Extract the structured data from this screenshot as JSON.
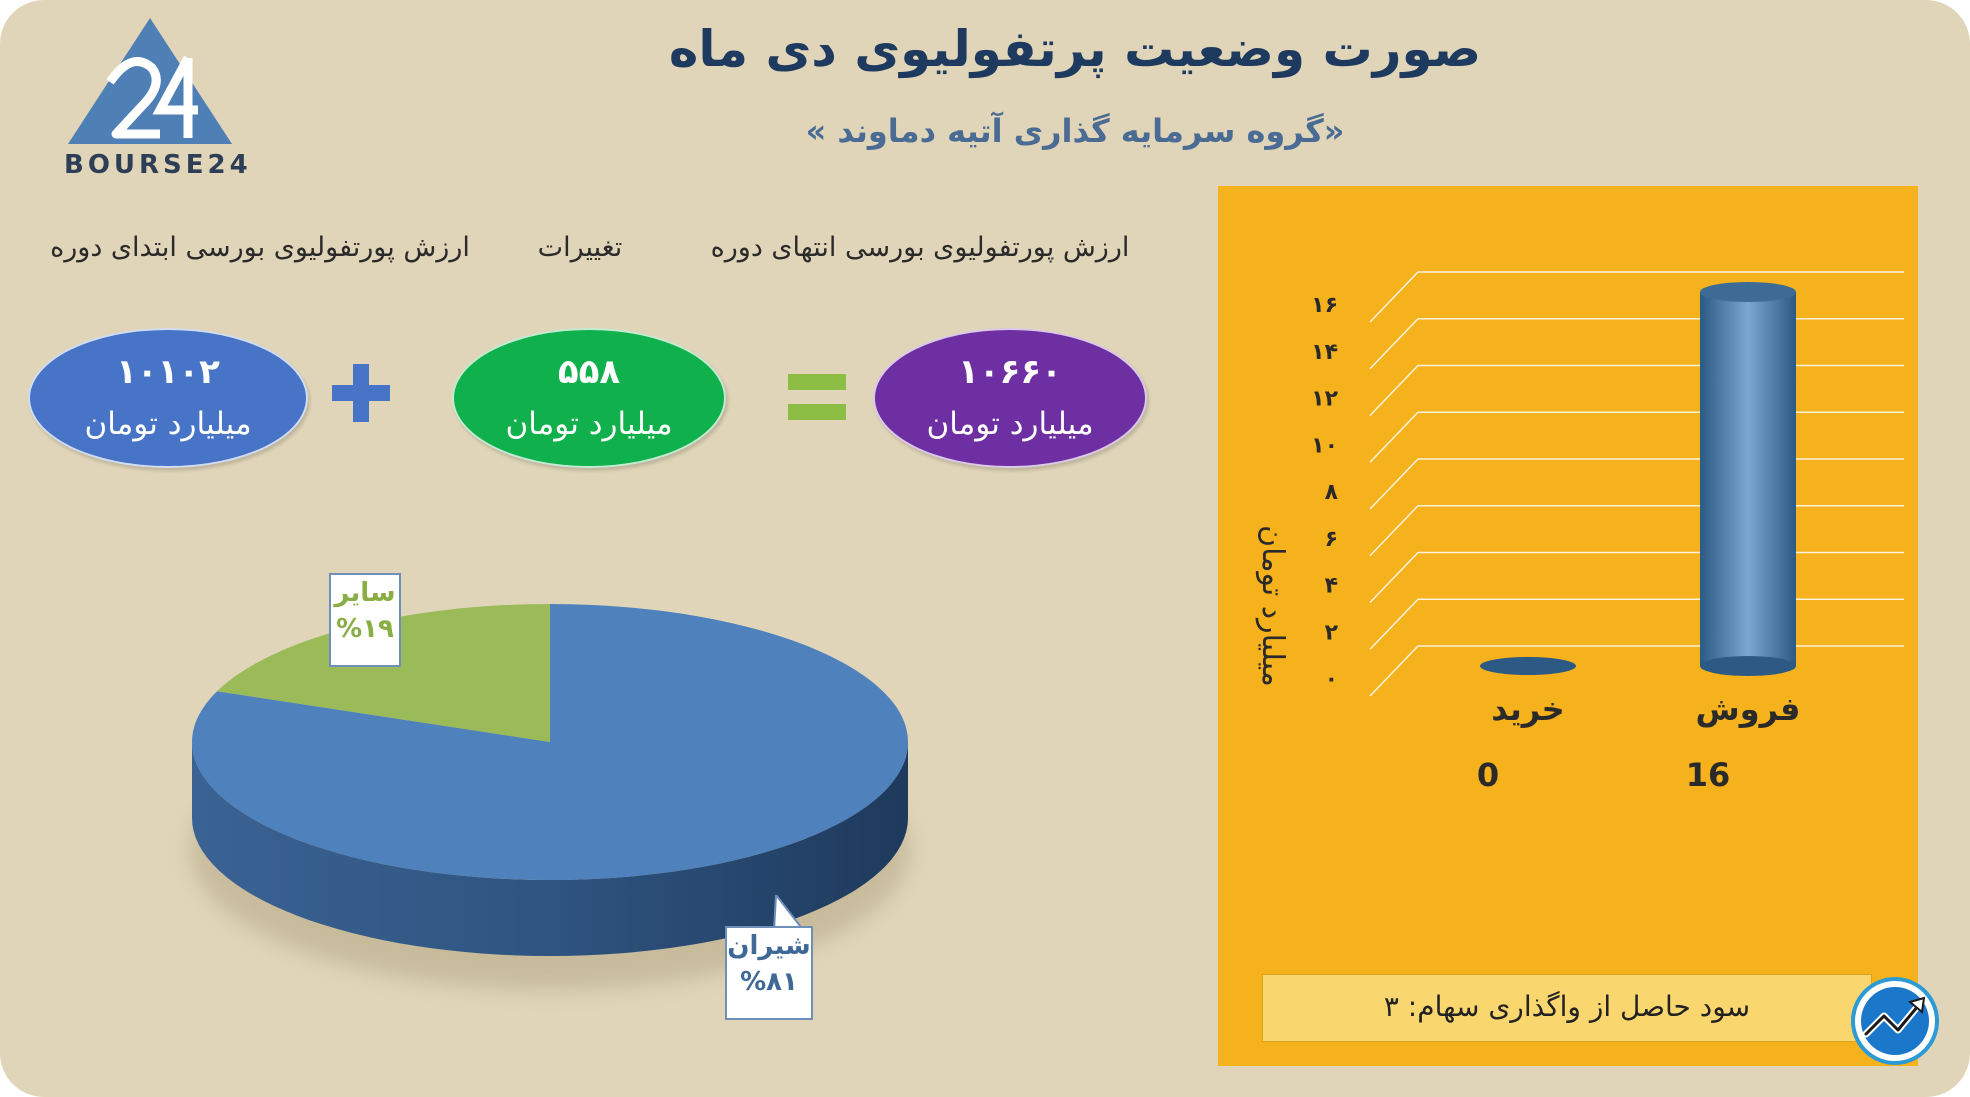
{
  "header": {
    "title": "صورت وضعیت پرتفولیوی دی ماه",
    "subtitle": "«گروه سرمایه گذاری آتیه دماوند »",
    "logo_text": "BOURSE24"
  },
  "summary": {
    "end_label": "ارزش پورتفولیوی بورسی انتهای دوره",
    "change_label": "تغییرات",
    "start_label": "ارزش پورتفولیوی بورسی ابتدای دوره",
    "end_value": "۱۰۶۶۰",
    "change_value": "۵۵۸",
    "start_value": "۱۰۱۰۲",
    "unit": "میلیارد تومان",
    "colors": {
      "end": "#6e2fa3",
      "change": "#10b04c",
      "start": "#4874c8",
      "operator": "#4874c8",
      "equals": "#8cbd45"
    }
  },
  "footer": {
    "profit_text": "سود حاصل از واگذاری سهام: ۳"
  },
  "chart_data": [
    {
      "type": "pie",
      "labels": [
        "شیران",
        "سایر"
      ],
      "values": [
        81,
        19
      ],
      "value_labels": [
        "%۸۱",
        "%۱۹"
      ],
      "colors": [
        "#4f81bd",
        "#9bbb59"
      ]
    },
    {
      "type": "bar",
      "categories": [
        "فروش",
        "خرید"
      ],
      "values": [
        16,
        0
      ],
      "value_labels": [
        "16",
        "0"
      ],
      "ylabel": "میلیارد تومان",
      "ylim": [
        0,
        16
      ],
      "yticks": [
        0,
        2,
        4,
        6,
        8,
        10,
        12,
        14,
        16
      ],
      "ytick_labels": [
        "۰",
        "۲",
        "۴",
        "۶",
        "۸",
        "۱۰",
        "۱۲",
        "۱۴",
        "۱۶"
      ],
      "grid": true,
      "bar_color": "#3f6f9f",
      "background": "#f6b21c"
    }
  ]
}
